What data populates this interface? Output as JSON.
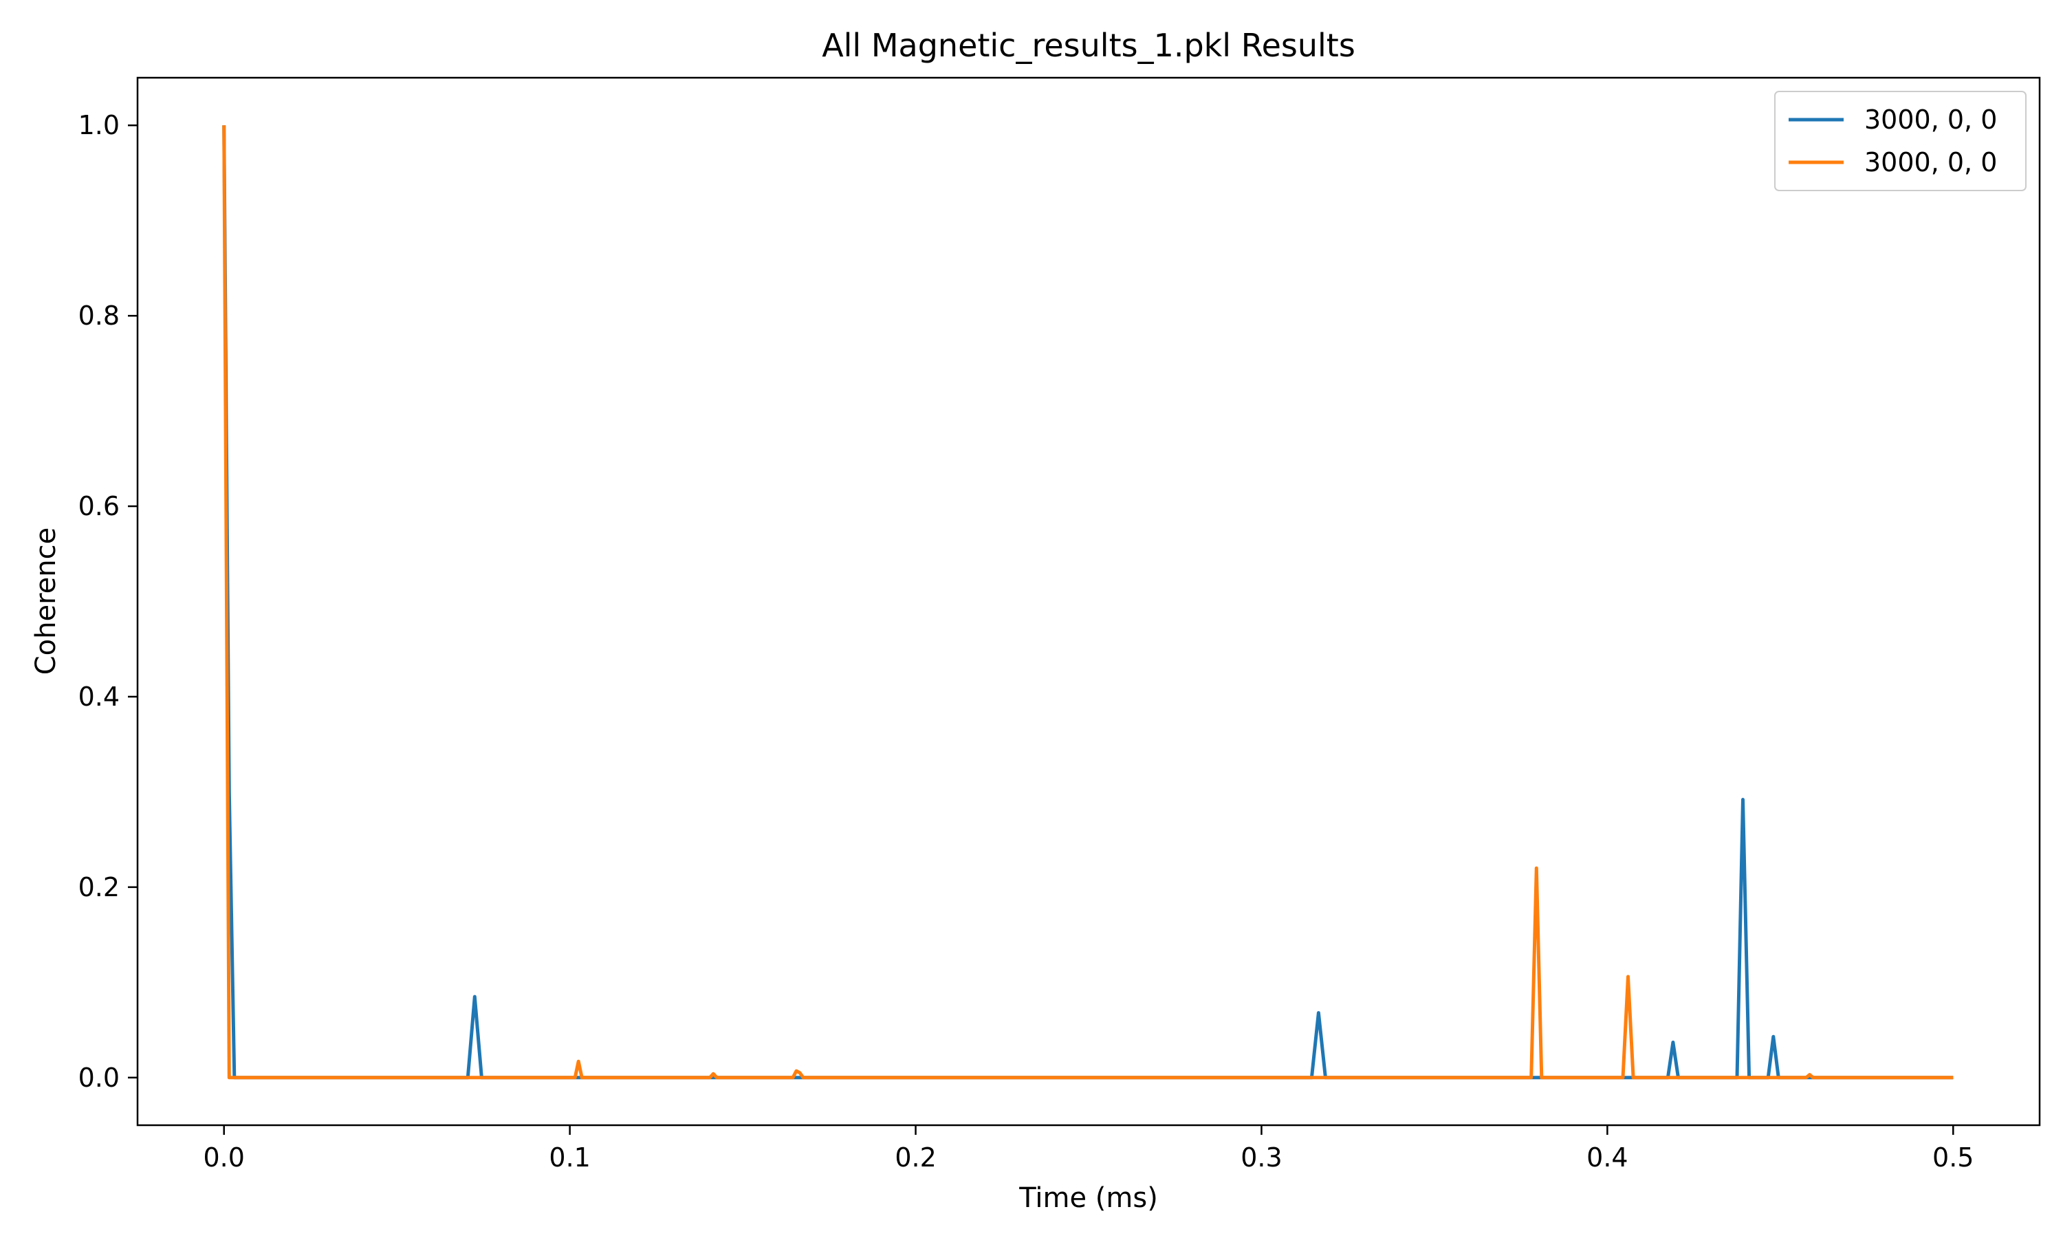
{
  "chart_data": {
    "type": "line",
    "title": "All Magnetic_results_1.pkl Results",
    "xlabel": "Time (ms)",
    "ylabel": "Coherence",
    "xlim": [
      -0.025,
      0.525
    ],
    "ylim": [
      -0.05,
      1.05
    ],
    "xticks": [
      0.0,
      0.1,
      0.2,
      0.3,
      0.4,
      0.5
    ],
    "xtick_labels": [
      "0.0",
      "0.1",
      "0.2",
      "0.3",
      "0.4",
      "0.5"
    ],
    "yticks": [
      0.0,
      0.2,
      0.4,
      0.6,
      0.8,
      1.0
    ],
    "ytick_labels": [
      "0.0",
      "0.2",
      "0.4",
      "0.6",
      "0.8",
      "1.0"
    ],
    "grid": false,
    "legend_position": "top-right",
    "series": [
      {
        "name": "3000, 0, 0",
        "color": "#1f77b4",
        "x": [
          0.0,
          0.0015,
          0.003,
          0.0705,
          0.0725,
          0.0745,
          0.3145,
          0.3165,
          0.3185,
          0.4175,
          0.419,
          0.4205,
          0.4375,
          0.4392,
          0.441,
          0.4465,
          0.448,
          0.4495,
          0.5
        ],
        "y": [
          1.0,
          0.3,
          0.0,
          0.0,
          0.085,
          0.0,
          0.0,
          0.068,
          0.0,
          0.0,
          0.037,
          0.0,
          0.0,
          0.292,
          0.0,
          0.0,
          0.043,
          0.0,
          0.0
        ]
      },
      {
        "name": "3000, 0, 0",
        "color": "#ff7f0e",
        "x": [
          0.0,
          0.0015,
          0.1015,
          0.1025,
          0.1035,
          0.1405,
          0.1415,
          0.1425,
          0.1645,
          0.1655,
          0.1665,
          0.1675,
          0.378,
          0.3795,
          0.381,
          0.4045,
          0.406,
          0.4075,
          0.4575,
          0.4585,
          0.4595,
          0.5
        ],
        "y": [
          1.0,
          0.0,
          0.0,
          0.017,
          0.0,
          0.0,
          0.004,
          0.0,
          0.0,
          0.007,
          0.005,
          0.0,
          0.0,
          0.22,
          0.0,
          0.0,
          0.106,
          0.0,
          0.0,
          0.003,
          0.0,
          0.0
        ]
      }
    ]
  }
}
